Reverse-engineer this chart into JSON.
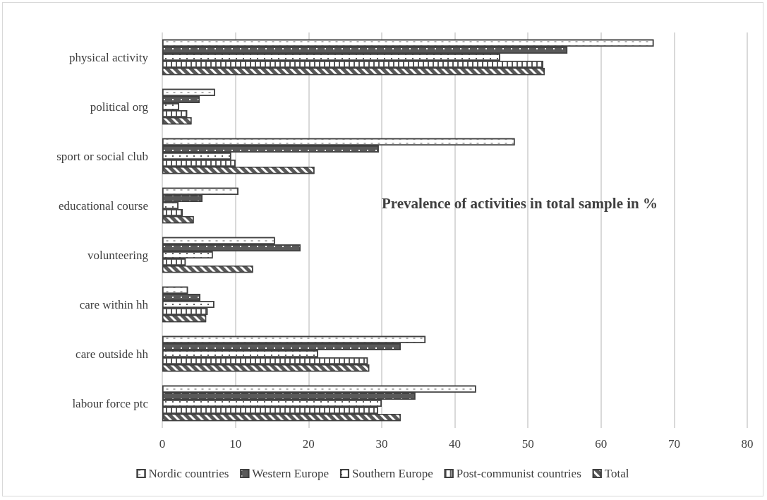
{
  "chart_data": {
    "type": "bar",
    "orientation": "horizontal",
    "title": "Prevalence of activities in total sample in %",
    "categories": [
      "physical activity",
      "political org",
      "sport or social club",
      "educational course",
      "volunteering",
      "care within hh",
      "care outside hh",
      "labour force ptc"
    ],
    "series": [
      {
        "name": "Nordic countries",
        "color": "#ffffff",
        "values": [
          67.2,
          7.2,
          48.2,
          10.4,
          15.4,
          3.5,
          36.0,
          42.9
        ]
      },
      {
        "name": "Western Europe",
        "color": "#595959",
        "values": [
          55.4,
          5.1,
          29.6,
          5.5,
          18.9,
          5.2,
          32.6,
          34.6
        ]
      },
      {
        "name": "Southern Europe",
        "color": "#ffffff",
        "values": [
          46.2,
          2.3,
          9.4,
          2.2,
          6.9,
          7.1,
          21.3,
          30.0
        ]
      },
      {
        "name": "Post-communist countries",
        "color": "#ffffff",
        "values": [
          52.1,
          3.4,
          10.0,
          2.8,
          3.2,
          6.2,
          28.1,
          29.5
        ]
      },
      {
        "name": "Total",
        "color": "#595959",
        "values": [
          52.3,
          4.0,
          20.8,
          4.3,
          12.4,
          6.0,
          28.3,
          32.6
        ]
      }
    ],
    "xlim": [
      0,
      80
    ],
    "xticks": [
      0,
      10,
      20,
      30,
      40,
      50,
      60,
      70,
      80
    ],
    "grid": "x",
    "legend": "bottom"
  }
}
